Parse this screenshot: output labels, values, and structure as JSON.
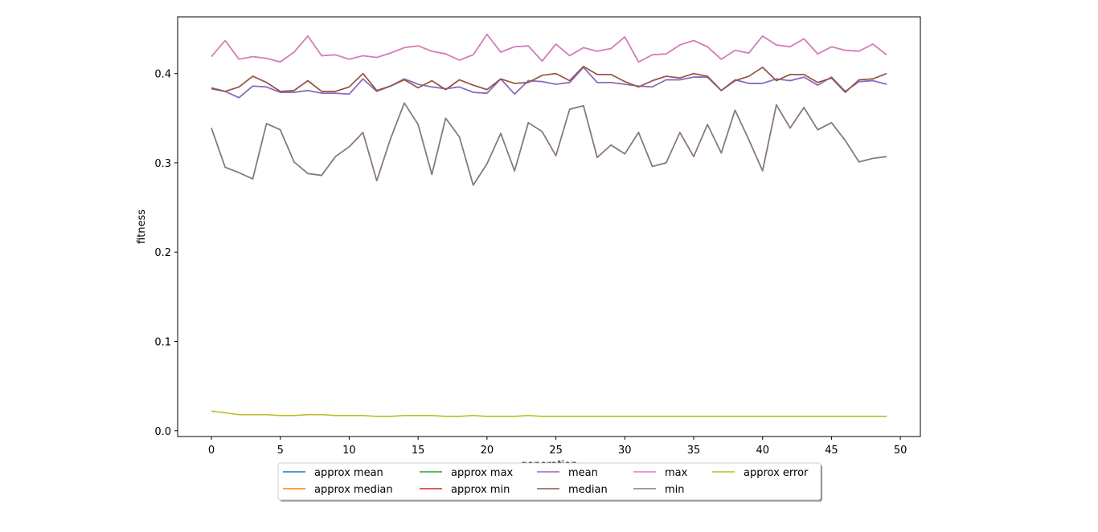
{
  "chart_data": {
    "type": "line",
    "title": "",
    "xlabel": "generation",
    "ylabel": "fitness",
    "xlim": [
      -2.45,
      51.45
    ],
    "ylim": [
      -0.0065,
      0.4635
    ],
    "xticks": [
      0,
      5,
      10,
      15,
      20,
      25,
      30,
      35,
      40,
      45,
      50
    ],
    "xtick_labels": [
      "0",
      "5",
      "10",
      "15",
      "20",
      "25",
      "30",
      "35",
      "40",
      "45",
      "50"
    ],
    "yticks": [
      0.0,
      0.1,
      0.2,
      0.3,
      0.4
    ],
    "ytick_labels": [
      "0.0",
      "0.1",
      "0.2",
      "0.3",
      "0.4"
    ],
    "grid": false,
    "legend_position": "below plot, centered",
    "x": [
      0,
      1,
      2,
      3,
      4,
      5,
      6,
      7,
      8,
      9,
      10,
      11,
      12,
      13,
      14,
      15,
      16,
      17,
      18,
      19,
      20,
      21,
      22,
      23,
      24,
      25,
      26,
      27,
      28,
      29,
      30,
      31,
      32,
      33,
      34,
      35,
      36,
      37,
      38,
      39,
      40,
      41,
      42,
      43,
      44,
      45,
      46,
      47,
      48,
      49
    ],
    "series": [
      {
        "name": "approx mean",
        "color": "#1f77b4",
        "values": [
          0.384,
          0.38,
          0.373,
          0.386,
          0.385,
          0.379,
          0.379,
          0.381,
          0.378,
          0.378,
          0.377,
          0.394,
          0.38,
          0.386,
          0.394,
          0.388,
          0.385,
          0.383,
          0.385,
          0.379,
          0.378,
          0.394,
          0.377,
          0.392,
          0.391,
          0.388,
          0.39,
          0.407,
          0.39,
          0.39,
          0.388,
          0.386,
          0.385,
          0.393,
          0.393,
          0.396,
          0.396,
          0.381,
          0.393,
          0.389,
          0.389,
          0.394,
          0.392,
          0.396,
          0.387,
          0.396,
          0.38,
          0.391,
          0.392,
          0.388
        ]
      },
      {
        "name": "approx median",
        "color": "#ff7f0e",
        "values": [
          0.383,
          0.38,
          0.385,
          0.397,
          0.39,
          0.38,
          0.381,
          0.392,
          0.38,
          0.38,
          0.385,
          0.4,
          0.381,
          0.386,
          0.393,
          0.384,
          0.392,
          0.382,
          0.393,
          0.387,
          0.382,
          0.394,
          0.389,
          0.39,
          0.398,
          0.4,
          0.392,
          0.408,
          0.399,
          0.399,
          0.391,
          0.385,
          0.392,
          0.397,
          0.395,
          0.4,
          0.397,
          0.381,
          0.392,
          0.397,
          0.407,
          0.392,
          0.399,
          0.399,
          0.39,
          0.395,
          0.379,
          0.393,
          0.394,
          0.4
        ]
      },
      {
        "name": "approx max",
        "color": "#2ca02c",
        "values": [
          0.419,
          0.437,
          0.416,
          0.419,
          0.417,
          0.413,
          0.424,
          0.442,
          0.42,
          0.421,
          0.416,
          0.42,
          0.418,
          0.423,
          0.429,
          0.431,
          0.425,
          0.422,
          0.415,
          0.421,
          0.444,
          0.424,
          0.43,
          0.431,
          0.414,
          0.433,
          0.42,
          0.429,
          0.425,
          0.428,
          0.441,
          0.413,
          0.421,
          0.422,
          0.432,
          0.437,
          0.43,
          0.416,
          0.426,
          0.423,
          0.442,
          0.432,
          0.43,
          0.439,
          0.422,
          0.43,
          0.426,
          0.425,
          0.433,
          0.421
        ]
      },
      {
        "name": "approx min",
        "color": "#d62728",
        "values": [
          0.339,
          0.295,
          0.289,
          0.282,
          0.344,
          0.337,
          0.301,
          0.288,
          0.286,
          0.307,
          0.318,
          0.334,
          0.28,
          0.327,
          0.367,
          0.343,
          0.287,
          0.35,
          0.329,
          0.275,
          0.299,
          0.333,
          0.291,
          0.345,
          0.335,
          0.308,
          0.36,
          0.364,
          0.306,
          0.32,
          0.31,
          0.334,
          0.296,
          0.3,
          0.334,
          0.307,
          0.343,
          0.311,
          0.359,
          0.326,
          0.291,
          0.365,
          0.339,
          0.362,
          0.337,
          0.345,
          0.325,
          0.301,
          0.305,
          0.307
        ]
      },
      {
        "name": "mean",
        "color": "#9467bd",
        "values": [
          0.384,
          0.38,
          0.373,
          0.386,
          0.385,
          0.379,
          0.379,
          0.381,
          0.378,
          0.378,
          0.377,
          0.394,
          0.38,
          0.386,
          0.394,
          0.388,
          0.385,
          0.383,
          0.385,
          0.379,
          0.378,
          0.394,
          0.377,
          0.392,
          0.391,
          0.388,
          0.39,
          0.407,
          0.39,
          0.39,
          0.388,
          0.386,
          0.385,
          0.393,
          0.393,
          0.396,
          0.396,
          0.381,
          0.393,
          0.389,
          0.389,
          0.394,
          0.392,
          0.396,
          0.387,
          0.396,
          0.38,
          0.391,
          0.392,
          0.388
        ]
      },
      {
        "name": "median",
        "color": "#8c564b",
        "values": [
          0.383,
          0.38,
          0.385,
          0.397,
          0.39,
          0.38,
          0.381,
          0.392,
          0.38,
          0.38,
          0.385,
          0.4,
          0.381,
          0.386,
          0.393,
          0.384,
          0.392,
          0.382,
          0.393,
          0.387,
          0.382,
          0.394,
          0.389,
          0.39,
          0.398,
          0.4,
          0.392,
          0.408,
          0.399,
          0.399,
          0.391,
          0.385,
          0.392,
          0.397,
          0.395,
          0.4,
          0.397,
          0.381,
          0.392,
          0.397,
          0.407,
          0.392,
          0.399,
          0.399,
          0.39,
          0.395,
          0.379,
          0.393,
          0.394,
          0.4
        ]
      },
      {
        "name": "max",
        "color": "#e377c2",
        "values": [
          0.419,
          0.437,
          0.416,
          0.419,
          0.417,
          0.413,
          0.424,
          0.442,
          0.42,
          0.421,
          0.416,
          0.42,
          0.418,
          0.423,
          0.429,
          0.431,
          0.425,
          0.422,
          0.415,
          0.421,
          0.444,
          0.424,
          0.43,
          0.431,
          0.414,
          0.433,
          0.42,
          0.429,
          0.425,
          0.428,
          0.441,
          0.413,
          0.421,
          0.422,
          0.432,
          0.437,
          0.43,
          0.416,
          0.426,
          0.423,
          0.442,
          0.432,
          0.43,
          0.439,
          0.422,
          0.43,
          0.426,
          0.425,
          0.433,
          0.421
        ]
      },
      {
        "name": "min",
        "color": "#7f7f7f",
        "values": [
          0.339,
          0.295,
          0.289,
          0.282,
          0.344,
          0.337,
          0.301,
          0.288,
          0.286,
          0.307,
          0.318,
          0.334,
          0.28,
          0.327,
          0.367,
          0.343,
          0.287,
          0.35,
          0.329,
          0.275,
          0.299,
          0.333,
          0.291,
          0.345,
          0.335,
          0.308,
          0.36,
          0.364,
          0.306,
          0.32,
          0.31,
          0.334,
          0.296,
          0.3,
          0.334,
          0.307,
          0.343,
          0.311,
          0.359,
          0.326,
          0.291,
          0.365,
          0.339,
          0.362,
          0.337,
          0.345,
          0.325,
          0.301,
          0.305,
          0.307
        ]
      },
      {
        "name": "approx error",
        "color": "#bcbd22",
        "values": [
          0.022,
          0.02,
          0.018,
          0.018,
          0.018,
          0.017,
          0.017,
          0.018,
          0.018,
          0.017,
          0.017,
          0.017,
          0.016,
          0.016,
          0.017,
          0.017,
          0.017,
          0.016,
          0.016,
          0.017,
          0.016,
          0.016,
          0.016,
          0.017,
          0.016,
          0.016,
          0.016,
          0.016,
          0.016,
          0.016,
          0.016,
          0.016,
          0.016,
          0.016,
          0.016,
          0.016,
          0.016,
          0.016,
          0.016,
          0.016,
          0.016,
          0.016,
          0.016,
          0.016,
          0.016,
          0.016,
          0.016,
          0.016,
          0.016,
          0.016
        ]
      }
    ]
  }
}
